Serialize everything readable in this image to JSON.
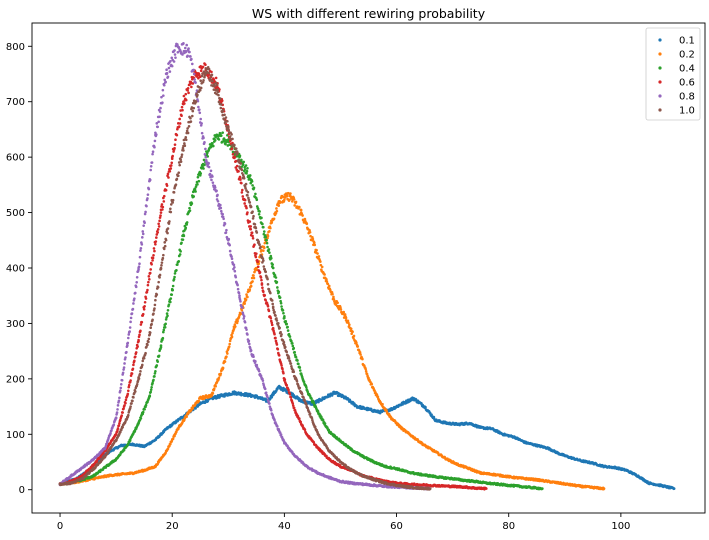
{
  "chart_data": {
    "type": "scatter",
    "title": "WS with different rewiring probability",
    "xlabel": "",
    "ylabel": "",
    "xlim": [
      -5,
      115
    ],
    "ylim": [
      -42,
      842
    ],
    "xticks": [
      0,
      20,
      40,
      60,
      80,
      100
    ],
    "yticks": [
      0,
      100,
      200,
      300,
      400,
      500,
      600,
      700,
      800
    ],
    "grid": false,
    "legend": "top-right",
    "series": [
      {
        "name": "0.1",
        "color": "#1f77b4",
        "x": [
          0,
          3,
          5,
          7,
          9,
          11,
          13,
          15,
          17,
          19,
          21,
          23,
          25,
          27,
          29,
          31,
          33,
          35,
          37,
          39,
          41,
          43,
          45,
          47,
          49,
          51,
          53,
          55,
          57,
          59,
          61,
          63,
          65,
          67,
          69,
          71,
          73,
          75,
          77,
          79,
          81,
          83,
          85,
          87,
          89,
          91,
          93,
          95,
          97,
          99,
          101,
          103,
          105,
          107,
          109.5
        ],
        "y": [
          10,
          20,
          35,
          55,
          70,
          80,
          82,
          78,
          90,
          110,
          125,
          140,
          155,
          165,
          170,
          175,
          172,
          168,
          160,
          185,
          175,
          160,
          155,
          165,
          175,
          165,
          150,
          145,
          140,
          145,
          155,
          165,
          150,
          125,
          120,
          118,
          120,
          112,
          110,
          100,
          95,
          85,
          80,
          75,
          65,
          58,
          52,
          48,
          42,
          40,
          35,
          25,
          12,
          8,
          2
        ]
      },
      {
        "name": "0.2",
        "color": "#ff7f0e",
        "x": [
          0,
          3,
          5,
          7,
          9,
          11,
          13,
          15,
          17,
          19,
          21,
          23,
          25,
          27,
          29,
          31,
          33,
          35,
          37,
          39,
          41,
          43,
          45,
          47,
          49,
          51,
          53,
          55,
          57,
          59,
          61,
          63,
          65,
          67,
          69,
          71,
          73,
          75,
          77,
          79,
          81,
          83,
          85,
          87,
          89,
          91,
          93,
          95,
          97
        ],
        "y": [
          10,
          14,
          18,
          22,
          26,
          28,
          30,
          35,
          42,
          70,
          110,
          140,
          165,
          170,
          220,
          290,
          340,
          400,
          460,
          520,
          530,
          500,
          450,
          390,
          340,
          310,
          260,
          200,
          160,
          130,
          110,
          95,
          80,
          68,
          55,
          45,
          38,
          30,
          28,
          25,
          22,
          20,
          18,
          15,
          12,
          9,
          6,
          4,
          2
        ]
      },
      {
        "name": "0.4",
        "color": "#2ca02c",
        "x": [
          0,
          2,
          4,
          6,
          8,
          10,
          12,
          14,
          16,
          18,
          20,
          22,
          24,
          26,
          28,
          30,
          32,
          34,
          36,
          38,
          40,
          42,
          44,
          46,
          48,
          50,
          52,
          54,
          56,
          58,
          60,
          62,
          64,
          66,
          68,
          70,
          72,
          74,
          76,
          78,
          80,
          82,
          84,
          86
        ],
        "y": [
          10,
          14,
          18,
          25,
          40,
          55,
          80,
          120,
          170,
          260,
          360,
          460,
          540,
          600,
          640,
          630,
          600,
          560,
          480,
          400,
          310,
          240,
          180,
          140,
          105,
          88,
          72,
          60,
          50,
          42,
          38,
          32,
          28,
          25,
          22,
          20,
          17,
          15,
          12,
          10,
          8,
          6,
          4,
          2
        ]
      },
      {
        "name": "0.6",
        "color": "#d62728",
        "x": [
          0,
          2,
          4,
          6,
          8,
          10,
          12,
          14,
          16,
          18,
          20,
          22,
          24,
          26,
          28,
          30,
          32,
          34,
          36,
          38,
          40,
          42,
          44,
          46,
          48,
          50,
          52,
          54,
          56,
          58,
          60,
          62,
          64,
          66,
          68,
          70,
          72,
          74,
          76
        ],
        "y": [
          10,
          15,
          25,
          45,
          70,
          100,
          170,
          270,
          390,
          500,
          600,
          700,
          750,
          760,
          730,
          650,
          560,
          470,
          370,
          290,
          200,
          140,
          100,
          75,
          55,
          42,
          35,
          25,
          20,
          15,
          12,
          10,
          9,
          8,
          7,
          6,
          5,
          3,
          2
        ]
      },
      {
        "name": "0.8",
        "color": "#9467bd",
        "x": [
          0,
          2,
          4,
          6,
          8,
          10,
          12,
          14,
          16,
          17,
          19,
          21,
          23,
          24,
          26,
          28,
          30,
          32,
          34,
          36,
          38,
          40,
          42,
          44,
          46,
          48,
          50,
          52,
          54,
          56,
          58,
          60,
          62,
          64,
          66
        ],
        "y": [
          10,
          25,
          40,
          55,
          75,
          130,
          260,
          400,
          560,
          640,
          750,
          800,
          790,
          740,
          600,
          530,
          450,
          350,
          250,
          200,
          130,
          85,
          60,
          42,
          30,
          22,
          15,
          12,
          10,
          8,
          6,
          5,
          4,
          3,
          2
        ]
      },
      {
        "name": "1.0",
        "color": "#8c564b",
        "x": [
          0,
          2,
          4,
          6,
          8,
          10,
          12,
          14,
          16,
          18,
          20,
          22,
          24,
          26,
          28,
          30,
          32,
          34,
          36,
          38,
          40,
          42,
          44,
          46,
          48,
          50,
          52,
          54,
          56,
          58,
          60,
          62,
          64,
          66
        ],
        "y": [
          10,
          12,
          20,
          38,
          60,
          90,
          130,
          200,
          280,
          400,
          520,
          620,
          700,
          760,
          720,
          650,
          590,
          510,
          420,
          330,
          260,
          200,
          150,
          100,
          70,
          50,
          35,
          25,
          18,
          12,
          8,
          5,
          3,
          2
        ]
      }
    ]
  }
}
